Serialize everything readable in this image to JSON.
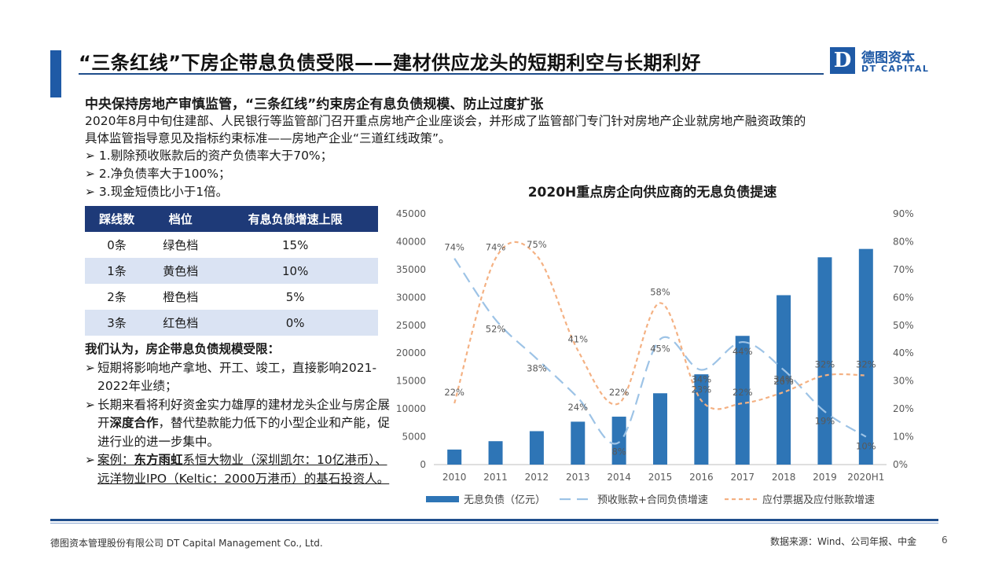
{
  "header": {
    "title": "“三条红线”下房企带息负债受限——建材供应龙头的短期利空与长期利好",
    "logo_cn": "德图资本",
    "logo_en": "DT CAPITAL",
    "logo_mark": "D"
  },
  "section": {
    "subtitle": "中央保持房地产审慎监管，“三条红线”约束房企有息负债规模、防止过度扩张",
    "paragraph": "2020年8月中旬住建部、人民银行等监管部门召开重点房地产企业座谈会，并形成了监管部门专门针对房地产企业就房地产融资政策的具体监管指导意见及指标约束标准——房地产企业“三道红线政策”。",
    "bullets": [
      "➢ 1.剔除预收账款后的资产负债率大于70%；",
      "➢ 2.净负债率大于100%；",
      "➢ 3.现金短债比小于1倍。"
    ]
  },
  "table": {
    "headers": [
      "踩线数",
      "档位",
      "有息负债增速上限"
    ],
    "rows": [
      [
        "0条",
        "绿色档",
        "15%"
      ],
      [
        "1条",
        "黄色档",
        "10%"
      ],
      [
        "2条",
        "橙色档",
        "5%"
      ],
      [
        "3条",
        "红色档",
        "0%"
      ]
    ]
  },
  "opinion": {
    "heading": "我们认为，房企带息负债规模受限：",
    "arrow": "➢",
    "item1": "短期将影响地产拿地、开工、竣工，直接影响2021-2022年业绩；",
    "item2_a": "长期来看将利好资金实力雄厚的建材龙头企业与房企展开",
    "item2_bold": "深度合作",
    "item2_b": "，替代垫款能力低下的小型企业和产能，促进行业的进一步集中。",
    "item3_a": "案例：",
    "item3_bold": "东方雨虹",
    "item3_b": "系恒大物业（深圳凯尔：10亿港币）、远洋物业IPO（Keltic：2000万港币）的基石投资人。"
  },
  "chart_data": {
    "type": "bar",
    "title": "2020H重点房企向供应商的无息负债提速",
    "categories": [
      "2010",
      "2011",
      "2012",
      "2013",
      "2014",
      "2015",
      "2016",
      "2017",
      "2018",
      "2019",
      "2020H1"
    ],
    "y_left": {
      "min": 0,
      "max": 45000,
      "ticks": [
        "0",
        "5000",
        "10000",
        "15000",
        "20000",
        "25000",
        "30000",
        "35000",
        "40000",
        "45000"
      ]
    },
    "y_right": {
      "min": 0,
      "max": 90,
      "ticks": [
        "0%",
        "10%",
        "20%",
        "30%",
        "40%",
        "50%",
        "60%",
        "70%",
        "80%",
        "90%"
      ]
    },
    "series": [
      {
        "name": "无息负债（亿元）",
        "kind": "bar",
        "axis": "left",
        "color": "#2e75b6",
        "values": [
          2700,
          4200,
          6000,
          7700,
          8600,
          12800,
          16200,
          23100,
          30400,
          37200,
          38700
        ]
      },
      {
        "name": "预收账款+合同负债增速",
        "kind": "line",
        "axis": "right",
        "color": "#9dc3e6",
        "dash": "long",
        "values": [
          74,
          52,
          38,
          24,
          8,
          45,
          34,
          44,
          34,
          19,
          10
        ],
        "labels": [
          "74%",
          "52%",
          "38%",
          "24%",
          "8%",
          "45%",
          "34%",
          "44%",
          "34%",
          "19%",
          "10%"
        ]
      },
      {
        "name": "应付票据及应付账款增速",
        "kind": "line",
        "axis": "right",
        "color": "#f4b183",
        "dash": "short",
        "values": [
          22,
          74,
          75,
          41,
          22,
          58,
          23,
          22,
          26,
          32,
          32
        ],
        "labels": [
          "22%",
          "74%",
          "75%",
          "41%",
          "22%",
          "58%",
          "23%",
          "22%",
          "26%",
          "32%",
          "32%"
        ]
      }
    ],
    "legend_position": "bottom",
    "grid": false
  },
  "footer": {
    "company": "德图资本管理股份有限公司  DT Capital Management  Co., Ltd.",
    "source": "数据来源：Wind、公司年报、中金",
    "page": "6"
  }
}
